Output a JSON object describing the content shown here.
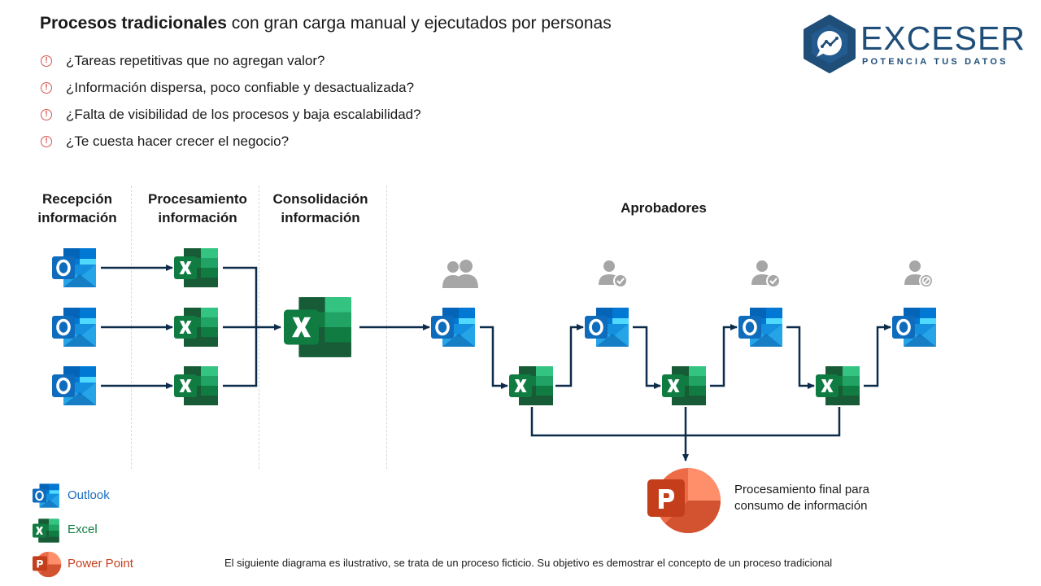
{
  "header": {
    "title_bold": "Procesos tradicionales",
    "title_rest": " con gran carga manual y ejecutados por personas"
  },
  "bullets": [
    "¿Tareas repetitivas que no agregan valor?",
    "¿Información dispersa, poco confiable y desactualizada?",
    "¿Falta de visibilidad de los procesos y baja escalabilidad?",
    "¿Te cuesta hacer crecer el negocio?"
  ],
  "bullet_icon": "exclamation-circle-icon",
  "logo": {
    "name": "EXCESER",
    "tagline": "POTENCIA TUS DATOS",
    "color": "#1f4e79"
  },
  "diagram": {
    "columns": [
      {
        "line1": "Recepción",
        "line2": "información"
      },
      {
        "line1": "Procesamiento",
        "line2": "información"
      },
      {
        "line1": "Consolidación",
        "line2": "información"
      }
    ],
    "approvers_label": "Aprobadores",
    "final_text": {
      "line1": "Procesamiento final para",
      "line2": "consumo de información"
    }
  },
  "legend": [
    {
      "label": "Outlook",
      "color": "#1b6ec2",
      "icon": "outlook-icon"
    },
    {
      "label": "Excel",
      "color": "#107c41",
      "icon": "excel-icon"
    },
    {
      "label": "Power Point",
      "color": "#c43e1c",
      "icon": "powerpoint-icon"
    }
  ],
  "footnote": "El siguiente diagrama es ilustrativo, se trata de un proceso ficticio. Su objetivo es demostrar el concepto de un proceso tradicional",
  "colors": {
    "arrow": "#0d2b4a",
    "outlook": "#0f6cbd",
    "excel": "#107c41",
    "powerpoint": "#c43e1c",
    "user_icon": "#a6a6a6"
  }
}
